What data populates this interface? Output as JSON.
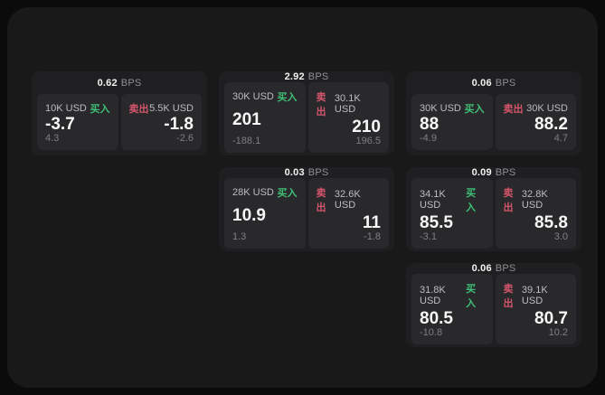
{
  "labels": {
    "bps_suffix": "BPS",
    "buy": "买入",
    "sell": "卖出"
  },
  "colors": {
    "page_bg": "#0b0b0c",
    "window_bg": "#19191a",
    "card_bg": "#1f1f21",
    "panel_bg": "#29292b",
    "buy_green": "#3fbf77",
    "sell_red": "#d4556b",
    "price_text": "#f7f7f7",
    "muted_text": "#7f7f82"
  },
  "cards": [
    {
      "bps": "0.62",
      "buy": {
        "amount": "10K USD",
        "price": "-3.7",
        "delta": "4.3"
      },
      "sell": {
        "amount": "5.5K USD",
        "price": "-1.8",
        "delta": "-2.6"
      }
    },
    {
      "bps": "2.92",
      "buy": {
        "amount": "30K USD",
        "price": "201",
        "delta": "-188.1"
      },
      "sell": {
        "amount": "30.1K USD",
        "price": "210",
        "delta": "196.5"
      }
    },
    {
      "bps": "0.06",
      "buy": {
        "amount": "30K USD",
        "price": "88",
        "delta": "-4.9"
      },
      "sell": {
        "amount": "30K USD",
        "price": "88.2",
        "delta": "4.7"
      }
    },
    {
      "bps": "0.03",
      "buy": {
        "amount": "28K USD",
        "price": "10.9",
        "delta": "1.3"
      },
      "sell": {
        "amount": "32.6K USD",
        "price": "11",
        "delta": "-1.8"
      }
    },
    {
      "bps": "0.09",
      "buy": {
        "amount": "34.1K USD",
        "price": "85.5",
        "delta": "-3.1"
      },
      "sell": {
        "amount": "32.8K USD",
        "price": "85.8",
        "delta": "3.0"
      }
    },
    {
      "bps": "0.06",
      "buy": {
        "amount": "31.8K USD",
        "price": "80.5",
        "delta": "-10.8"
      },
      "sell": {
        "amount": "39.1K USD",
        "price": "80.7",
        "delta": "10.2"
      }
    }
  ]
}
